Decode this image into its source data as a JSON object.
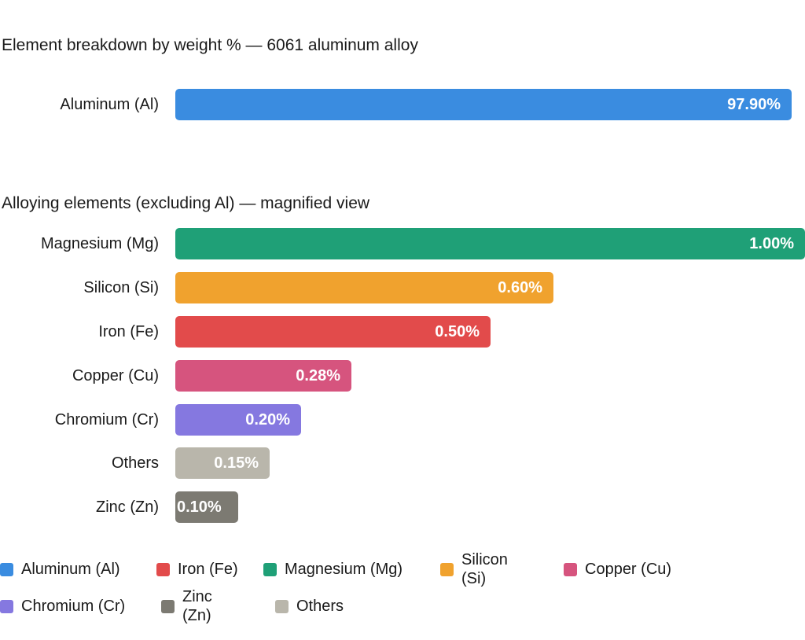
{
  "chart_data": [
    {
      "type": "bar",
      "orientation": "horizontal",
      "title": "Element breakdown by weight % — 6061 aluminum alloy",
      "categories": [
        "Aluminum (Al)"
      ],
      "values": [
        97.9
      ],
      "value_labels": [
        "97.90%"
      ],
      "colors": [
        "#3a8ce0"
      ],
      "xlim": [
        0,
        97.9
      ],
      "grid": false
    },
    {
      "type": "bar",
      "orientation": "horizontal",
      "title": "Alloying elements (excluding Al) — magnified view",
      "categories": [
        "Magnesium (Mg)",
        "Silicon (Si)",
        "Iron (Fe)",
        "Copper (Cu)",
        "Chromium (Cr)",
        "Others",
        "Zinc (Zn)"
      ],
      "values": [
        1.0,
        0.6,
        0.5,
        0.28,
        0.2,
        0.15,
        0.1
      ],
      "value_labels": [
        "1.00%",
        "0.60%",
        "0.50%",
        "0.28%",
        "0.20%",
        "0.15%",
        "0.10%"
      ],
      "colors": [
        "#1fa077",
        "#f0a22e",
        "#e24b4b",
        "#d6547e",
        "#8578e0",
        "#b9b6ab",
        "#7c7a72"
      ],
      "xlim": [
        0,
        1.0
      ],
      "grid": false
    }
  ],
  "legend": {
    "placement": "bottom",
    "items": [
      {
        "label": "Aluminum (Al)",
        "color": "#3a8ce0"
      },
      {
        "label": "Iron (Fe)",
        "color": "#e24b4b"
      },
      {
        "label": "Magnesium (Mg)",
        "color": "#1fa077"
      },
      {
        "label": "Silicon (Si)",
        "color": "#f0a22e"
      },
      {
        "label": "Copper (Cu)",
        "color": "#d6547e"
      },
      {
        "label": "Chromium (Cr)",
        "color": "#8578e0"
      },
      {
        "label": "Zinc (Zn)",
        "color": "#7c7a72"
      },
      {
        "label": "Others",
        "color": "#b9b6ab"
      }
    ]
  }
}
